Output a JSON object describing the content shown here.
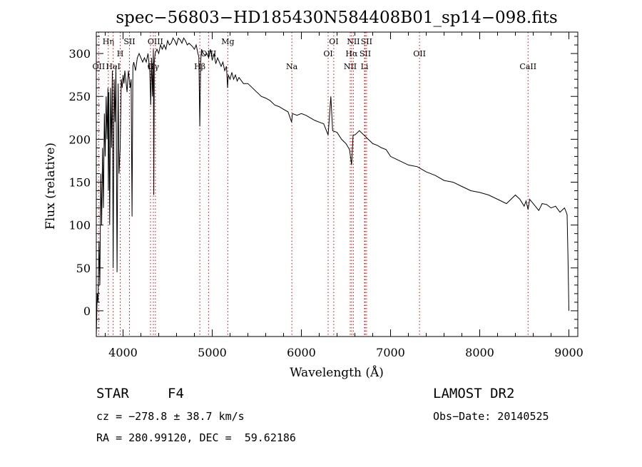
{
  "chart_data": {
    "type": "line",
    "title": "spec−56803−HD185430N584408B01_sp14−098.fits",
    "xlabel": "Wavelength (Å)",
    "ylabel": "Flux (relative)",
    "xlim": [
      3700,
      9100
    ],
    "ylim": [
      -30,
      325
    ],
    "xticks": [
      4000,
      5000,
      6000,
      7000,
      8000,
      9000
    ],
    "yticks": [
      0,
      50,
      100,
      150,
      200,
      250,
      300
    ],
    "grid": false,
    "line_color": "#000000",
    "marker_color": "#e00000",
    "series": [
      {
        "x": [
          3700,
          3710,
          3720,
          3730,
          3740,
          3750,
          3760,
          3770,
          3780,
          3790,
          3800,
          3810,
          3820,
          3830,
          3835,
          3840,
          3850,
          3860,
          3870,
          3880,
          3889,
          3900,
          3910,
          3920,
          3933,
          3945,
          3955,
          3968,
          3980,
          3990,
          4000,
          4010,
          4020,
          4030,
          4045,
          4060,
          4080,
          4090,
          4101,
          4110,
          4120,
          4140,
          4160,
          4180,
          4200,
          4220,
          4240,
          4260,
          4280,
          4300,
          4310,
          4320,
          4330,
          4340,
          4345,
          4350,
          4360,
          4380,
          4400,
          4420,
          4440,
          4460,
          4480,
          4500,
          4520,
          4540,
          4560,
          4580,
          4600,
          4620,
          4640,
          4660,
          4680,
          4700,
          4720,
          4740,
          4760,
          4780,
          4800,
          4820,
          4840,
          4850,
          4861,
          4870,
          4880,
          4900,
          4920,
          4940,
          4960,
          4980,
          5000,
          5020,
          5040,
          5060,
          5080,
          5100,
          5120,
          5140,
          5160,
          5172,
          5180,
          5200,
          5220,
          5240,
          5260,
          5280,
          5300,
          5350,
          5400,
          5450,
          5500,
          5550,
          5600,
          5650,
          5700,
          5750,
          5800,
          5850,
          5890,
          5900,
          5950,
          6000,
          6050,
          6100,
          6150,
          6200,
          6250,
          6300,
          6330,
          6350,
          6400,
          6450,
          6500,
          6540,
          6563,
          6580,
          6600,
          6650,
          6700,
          6750,
          6800,
          6850,
          6900,
          6950,
          7000,
          7100,
          7200,
          7300,
          7400,
          7500,
          7600,
          7700,
          7800,
          7900,
          8000,
          8100,
          8200,
          8300,
          8400,
          8450,
          8498,
          8520,
          8542,
          8560,
          8600,
          8662,
          8700,
          8750,
          8800,
          8850,
          8900,
          8950,
          8970,
          8980,
          8990,
          9000
        ],
        "y": [
          -30,
          20,
          10,
          80,
          30,
          160,
          100,
          190,
          120,
          230,
          180,
          250,
          200,
          260,
          140,
          255,
          100,
          260,
          190,
          280,
          50,
          270,
          220,
          285,
          45,
          265,
          160,
          190,
          270,
          260,
          275,
          265,
          280,
          270,
          255,
          280,
          260,
          270,
          110,
          285,
          290,
          280,
          295,
          300,
          295,
          290,
          295,
          290,
          300,
          280,
          240,
          295,
          250,
          305,
          135,
          290,
          300,
          305,
          300,
          310,
          305,
          310,
          305,
          315,
          310,
          312,
          318,
          315,
          310,
          318,
          316,
          312,
          318,
          315,
          310,
          312,
          310,
          308,
          305,
          310,
          300,
          296,
          215,
          290,
          305,
          300,
          298,
          300,
          295,
          305,
          292,
          300,
          288,
          295,
          290,
          285,
          290,
          280,
          285,
          260,
          275,
          270,
          278,
          270,
          275,
          268,
          272,
          265,
          265,
          260,
          255,
          250,
          248,
          245,
          240,
          238,
          235,
          232,
          220,
          230,
          228,
          230,
          228,
          225,
          222,
          220,
          218,
          205,
          250,
          210,
          208,
          200,
          195,
          188,
          170,
          205,
          205,
          210,
          205,
          200,
          195,
          193,
          190,
          188,
          180,
          175,
          170,
          168,
          162,
          158,
          152,
          150,
          145,
          140,
          138,
          135,
          130,
          125,
          135,
          130,
          122,
          128,
          118,
          130,
          125,
          117,
          125,
          124,
          120,
          122,
          115,
          120,
          115,
          112,
          60,
          0
        ]
      }
    ],
    "line_markers": [
      {
        "label": "Hη",
        "x": 3835,
        "row": 1
      },
      {
        "label": "OII",
        "x": 3727,
        "row": 3
      },
      {
        "label": "HeI",
        "x": 3889,
        "row": 3
      },
      {
        "label": "H",
        "x": 3968,
        "row": 2
      },
      {
        "label": "SII",
        "x": 4072,
        "row": 1
      },
      {
        "label": "OIII",
        "x": 4363,
        "row": 1
      },
      {
        "label": "G",
        "x": 4308,
        "row": 3
      },
      {
        "label": "Hγ",
        "x": 4340,
        "row": 3
      },
      {
        "label": "Hβ",
        "x": 4861,
        "row": 3
      },
      {
        "label": "OIII",
        "x": 4959,
        "row": 2
      },
      {
        "label": "Mg",
        "x": 5175,
        "row": 1
      },
      {
        "label": "Na",
        "x": 5893,
        "row": 3
      },
      {
        "label": "OI",
        "x": 6300,
        "row": 2
      },
      {
        "label": "OI",
        "x": 6363,
        "row": 1
      },
      {
        "label": "NII",
        "x": 6548,
        "row": 3
      },
      {
        "label": "NII",
        "x": 6583,
        "row": 1
      },
      {
        "label": "Hα",
        "x": 6563,
        "row": 2
      },
      {
        "label": "SII",
        "x": 6716,
        "row": 2
      },
      {
        "label": "SII",
        "x": 6731,
        "row": 1
      },
      {
        "label": "Li",
        "x": 6708,
        "row": 3
      },
      {
        "label": "OII",
        "x": 7325,
        "row": 2
      },
      {
        "label": "CaII",
        "x": 8542,
        "row": 3
      }
    ]
  },
  "footer": {
    "class_label": "STAR",
    "subclass": "F4",
    "survey": "LAMOST DR2",
    "cz": "cz = −278.8 ± 38.7 km/s",
    "obs_date": "Obs−Date: 20140525",
    "radec": "RA = 280.99120, DEC =  59.62186"
  }
}
